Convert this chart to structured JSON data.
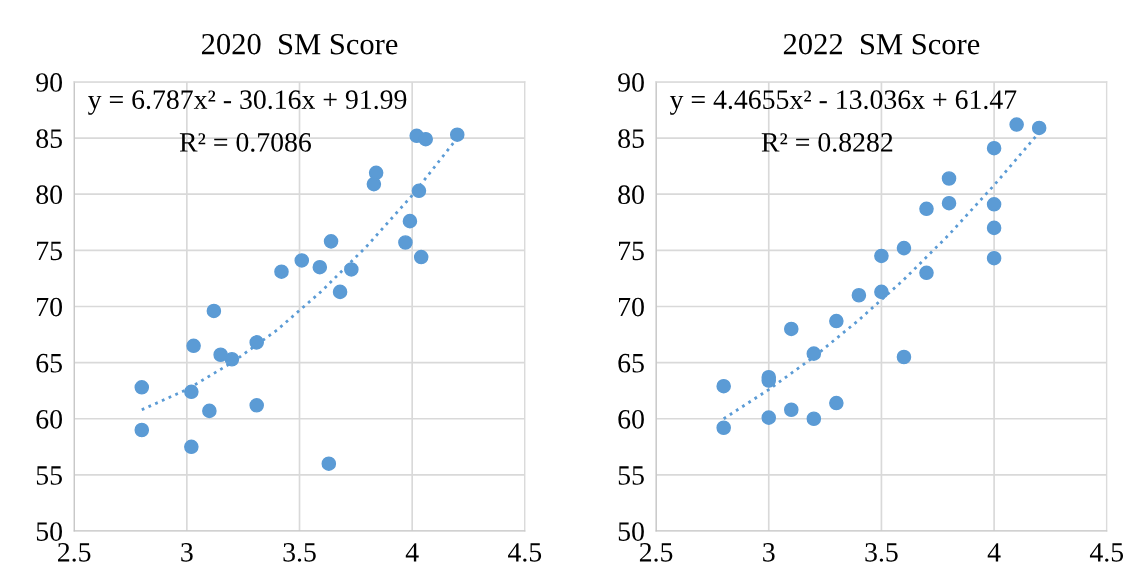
{
  "chart_data": [
    {
      "type": "scatter",
      "title": "2020  SM Score",
      "xlim": [
        2.5,
        4.5
      ],
      "xticks": [
        2.5,
        3,
        3.5,
        4,
        4.5
      ],
      "ylim": [
        50,
        90
      ],
      "yticks": [
        50,
        55,
        60,
        65,
        70,
        75,
        80,
        85,
        90
      ],
      "grid": true,
      "legend": false,
      "marker": "circle",
      "annotations": [
        "y = 6.787x² - 30.16x + 91.99",
        "R² = 0.7086"
      ],
      "series": [
        {
          "color": "#5b9bd5",
          "x": [
            2.8,
            2.8,
            3.02,
            3.03,
            3.02,
            3.1,
            3.12,
            3.15,
            3.2,
            3.31,
            3.31,
            3.42,
            3.51,
            3.59,
            3.64,
            3.63,
            3.68,
            3.73,
            3.83,
            3.84,
            3.97,
            3.99,
            4.02,
            4.03,
            4.04,
            4.06,
            4.2
          ],
          "values": [
            62.8,
            59.0,
            62.4,
            66.5,
            57.5,
            60.7,
            69.6,
            65.7,
            65.3,
            66.8,
            61.2,
            73.1,
            74.1,
            73.5,
            75.8,
            56.0,
            71.3,
            73.3,
            80.9,
            81.9,
            75.7,
            77.6,
            85.2,
            80.3,
            74.4,
            84.9,
            85.3
          ]
        },
        {
          "type": "line",
          "color": "#5b9bd5",
          "line_style": "dotted",
          "marker": "none",
          "x": [
            2.8,
            3.0,
            3.2,
            3.4,
            3.6,
            3.8,
            4.0,
            4.2
          ],
          "values": [
            60.8,
            62.6,
            65.0,
            67.9,
            71.4,
            75.4,
            79.9,
            85.0
          ]
        }
      ]
    },
    {
      "type": "scatter",
      "title": "2022  SM Score",
      "xlim": [
        2.5,
        4.5
      ],
      "xticks": [
        2.5,
        3,
        3.5,
        4,
        4.5
      ],
      "ylim": [
        50,
        90
      ],
      "yticks": [
        50,
        55,
        60,
        65,
        70,
        75,
        80,
        85,
        90
      ],
      "grid": true,
      "legend": false,
      "marker": "circle",
      "annotations": [
        "y = 4.4655x² - 13.036x + 61.47",
        "R² = 0.8282"
      ],
      "series": [
        {
          "color": "#5b9bd5",
          "x": [
            2.8,
            2.8,
            3.0,
            3.0,
            3.0,
            3.1,
            3.1,
            3.2,
            3.2,
            3.3,
            3.3,
            3.4,
            3.5,
            3.5,
            3.6,
            3.6,
            3.7,
            3.7,
            3.8,
            3.8,
            4.0,
            4.0,
            4.0,
            4.0,
            4.1,
            4.2
          ],
          "values": [
            62.9,
            59.2,
            63.7,
            63.4,
            60.1,
            68.0,
            60.8,
            65.8,
            60.0,
            68.7,
            61.4,
            71.0,
            74.5,
            71.3,
            75.2,
            65.5,
            78.7,
            73.0,
            81.4,
            79.2,
            84.1,
            79.1,
            77.0,
            74.3,
            86.2,
            85.9
          ]
        },
        {
          "type": "line",
          "color": "#5b9bd5",
          "line_style": "dotted",
          "marker": "none",
          "x": [
            2.8,
            3.0,
            3.2,
            3.4,
            3.6,
            3.8,
            4.0,
            4.2
          ],
          "values": [
            60.0,
            62.6,
            65.5,
            68.8,
            72.4,
            76.4,
            80.8,
            85.5
          ]
        }
      ]
    }
  ]
}
